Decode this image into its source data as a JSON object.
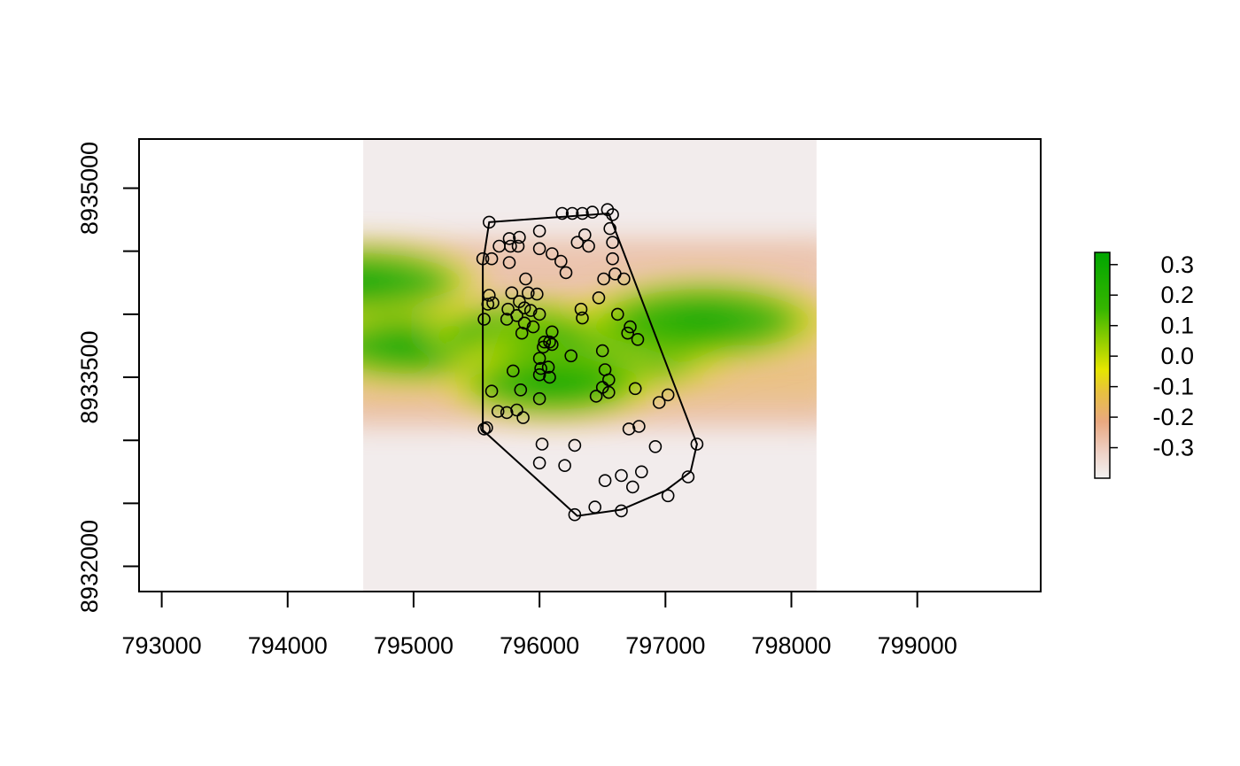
{
  "chart_data": {
    "type": "heatmap",
    "title": "",
    "xlabel": "",
    "ylabel": "",
    "xlim": [
      792820,
      799980
    ],
    "ylim": [
      8931800,
      8935390
    ],
    "raster_extent": {
      "x": [
        794600,
        798200
      ],
      "y": [
        8931800,
        8935390
      ]
    },
    "colors": {
      "low": "#f2ecec",
      "mid_low": "#e9b79a",
      "zero": "#e6e600",
      "high": "#00a600",
      "outline": "#000000"
    },
    "x_ticks": [
      {
        "value": 793000,
        "label": "793000"
      },
      {
        "value": 794000,
        "label": "794000"
      },
      {
        "value": 795000,
        "label": "795000"
      },
      {
        "value": 796000,
        "label": "796000"
      },
      {
        "value": 797000,
        "label": "797000"
      },
      {
        "value": 798000,
        "label": "798000"
      },
      {
        "value": 799000,
        "label": "799000"
      }
    ],
    "y_ticks": [
      {
        "value": 8932000,
        "label": "8932000"
      },
      {
        "value": 8932500,
        "label": ""
      },
      {
        "value": 8933000,
        "label": ""
      },
      {
        "value": 8933500,
        "label": "8933500"
      },
      {
        "value": 8934000,
        "label": ""
      },
      {
        "value": 8934500,
        "label": ""
      },
      {
        "value": 8935000,
        "label": "8935000"
      }
    ],
    "legend": {
      "position": "right",
      "range": [
        -0.4,
        0.34
      ],
      "ticks": [
        {
          "value": 0.3,
          "label": "0.3"
        },
        {
          "value": 0.2,
          "label": "0.2"
        },
        {
          "value": 0.1,
          "label": "0.1"
        },
        {
          "value": 0.0,
          "label": "0.0"
        },
        {
          "value": -0.1,
          "label": "-0.1"
        },
        {
          "value": -0.2,
          "label": "-0.2"
        },
        {
          "value": -0.3,
          "label": "-0.3"
        }
      ]
    },
    "green_band": [
      {
        "x": 794600,
        "y": 8934250,
        "value": 0.25
      },
      {
        "x": 795000,
        "y": 8933750,
        "value": 0.2
      },
      {
        "x": 795900,
        "y": 8933850,
        "value": 0.12
      },
      {
        "x": 796500,
        "y": 8933700,
        "value": 0.32
      },
      {
        "x": 797300,
        "y": 8933950,
        "value": 0.3
      },
      {
        "x": 796100,
        "y": 8933450,
        "value": 0.15
      }
    ],
    "hull": [
      [
        795600,
        8934730
      ],
      [
        796550,
        8934800
      ],
      [
        797250,
        8932970
      ],
      [
        797200,
        8932750
      ],
      [
        797000,
        8932600
      ],
      [
        796650,
        8932450
      ],
      [
        796300,
        8932400
      ],
      [
        795550,
        8933080
      ],
      [
        795550,
        8934400
      ]
    ],
    "points": [
      [
        795600,
        8934730
      ],
      [
        795550,
        8934440
      ],
      [
        795620,
        8934440
      ],
      [
        795680,
        8934540
      ],
      [
        795760,
        8934600
      ],
      [
        795770,
        8934540
      ],
      [
        795840,
        8934610
      ],
      [
        795830,
        8934540
      ],
      [
        795760,
        8934410
      ],
      [
        795890,
        8934280
      ],
      [
        795780,
        8934170
      ],
      [
        795910,
        8934170
      ],
      [
        795980,
        8934160
      ],
      [
        795600,
        8934150
      ],
      [
        795590,
        8934080
      ],
      [
        795630,
        8934090
      ],
      [
        795750,
        8934040
      ],
      [
        795840,
        8934100
      ],
      [
        795880,
        8934050
      ],
      [
        795930,
        8934030
      ],
      [
        796000,
        8934000
      ],
      [
        795820,
        8933990
      ],
      [
        795740,
        8933960
      ],
      [
        795880,
        8933930
      ],
      [
        795950,
        8933900
      ],
      [
        795560,
        8933960
      ],
      [
        795860,
        8933850
      ],
      [
        796100,
        8933860
      ],
      [
        796040,
        8933780
      ],
      [
        796080,
        8933780
      ],
      [
        796030,
        8933740
      ],
      [
        796100,
        8933760
      ],
      [
        796000,
        8933650
      ],
      [
        796250,
        8933670
      ],
      [
        795790,
        8933550
      ],
      [
        796000,
        8933520
      ],
      [
        796080,
        8933500
      ],
      [
        795620,
        8933390
      ],
      [
        795850,
        8933400
      ],
      [
        796000,
        8933330
      ],
      [
        795740,
        8933220
      ],
      [
        795670,
        8933230
      ],
      [
        795820,
        8933240
      ],
      [
        795870,
        8933180
      ],
      [
        795560,
        8933090
      ],
      [
        795580,
        8933100
      ],
      [
        796020,
        8932970
      ],
      [
        796000,
        8932820
      ],
      [
        796200,
        8932800
      ],
      [
        796280,
        8932960
      ],
      [
        796180,
        8934800
      ],
      [
        796260,
        8934800
      ],
      [
        796340,
        8934800
      ],
      [
        796420,
        8934810
      ],
      [
        796540,
        8934830
      ],
      [
        796580,
        8934790
      ],
      [
        796560,
        8934680
      ],
      [
        796360,
        8934630
      ],
      [
        796300,
        8934570
      ],
      [
        796390,
        8934540
      ],
      [
        796100,
        8934480
      ],
      [
        796000,
        8934660
      ],
      [
        796000,
        8934520
      ],
      [
        796170,
        8934420
      ],
      [
        796210,
        8934330
      ],
      [
        796580,
        8934570
      ],
      [
        796580,
        8934440
      ],
      [
        796600,
        8934320
      ],
      [
        796670,
        8934280
      ],
      [
        796510,
        8934280
      ],
      [
        796470,
        8934130
      ],
      [
        796330,
        8934040
      ],
      [
        796340,
        8933970
      ],
      [
        796620,
        8934000
      ],
      [
        796720,
        8933900
      ],
      [
        796700,
        8933850
      ],
      [
        796780,
        8933800
      ],
      [
        796500,
        8933710
      ],
      [
        796520,
        8933560
      ],
      [
        796550,
        8933480
      ],
      [
        796500,
        8933420
      ],
      [
        796550,
        8933380
      ],
      [
        796450,
        8933350
      ],
      [
        796760,
        8933410
      ],
      [
        796950,
        8933300
      ],
      [
        797020,
        8933360
      ],
      [
        796710,
        8933090
      ],
      [
        796790,
        8933110
      ],
      [
        796920,
        8932950
      ],
      [
        796810,
        8932750
      ],
      [
        796650,
        8932720
      ],
      [
        796520,
        8932680
      ],
      [
        796740,
        8932630
      ],
      [
        797020,
        8932560
      ],
      [
        797180,
        8932710
      ],
      [
        797250,
        8932970
      ],
      [
        796440,
        8932470
      ],
      [
        796650,
        8932440
      ],
      [
        796280,
        8932410
      ],
      [
        796070,
        8933580
      ],
      [
        796010,
        8933570
      ]
    ]
  }
}
